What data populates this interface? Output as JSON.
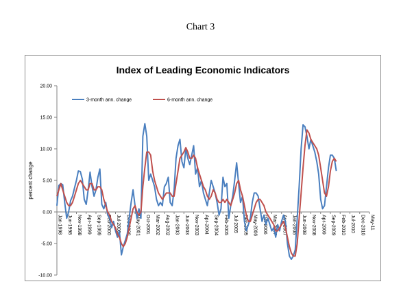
{
  "page": {
    "caption": "Chart 3"
  },
  "chart_data": {
    "type": "line",
    "title": "Index of Leading Economic Indicators",
    "xlabel": "",
    "ylabel": "percent change",
    "ylim": [
      -10,
      20
    ],
    "yticks": [
      "20.00",
      "15.00",
      "10.00",
      "5.00",
      "0.00",
      "-5.00",
      "-10.00"
    ],
    "ytick_values": [
      20,
      15,
      10,
      5,
      0,
      -5,
      -10
    ],
    "grid": false,
    "legend": "top-left",
    "x_start": "1998-01",
    "x_end": "2011-05",
    "xticks": [
      "Jan-1998",
      "Jun-1998",
      "Nov-1998",
      "Apr-1999",
      "Sep-1999",
      "Feb-2000",
      "Jul-2000",
      "Dec-2000",
      "May-2001",
      "Oct-2001",
      "Mar-2002",
      "Aug-2002",
      "Jan-2003",
      "Jun-2003",
      "Nov-2003",
      "Apr-2004",
      "Sep-2004",
      "Feb-2005",
      "Jul-2005",
      "Dec-2005",
      "May-2006",
      "Oct-2006",
      "Mar-2007",
      "Aug-2007",
      "Jan-2008",
      "Jun-2008",
      "Nov-2008",
      "Apr-2009",
      "Sep-2009",
      "Feb-2010",
      "Jul-2010",
      "Dec-2010",
      "May-11"
    ],
    "series": [
      {
        "name": "3-month ann. change",
        "color": "#4a7fbf",
        "points": [
          [
            "1998-01",
            1.0
          ],
          [
            "1998-02",
            4.2
          ],
          [
            "1998-03",
            4.5
          ],
          [
            "1998-04",
            4.3
          ],
          [
            "1998-05",
            1.5
          ],
          [
            "1998-06",
            -1.0
          ],
          [
            "1998-07",
            0.0
          ],
          [
            "1998-08",
            1.8
          ],
          [
            "1998-09",
            2.5
          ],
          [
            "1998-10",
            3.8
          ],
          [
            "1998-11",
            5.0
          ],
          [
            "1998-12",
            6.5
          ],
          [
            "1999-01",
            6.4
          ],
          [
            "1999-02",
            5.2
          ],
          [
            "1999-03",
            2.0
          ],
          [
            "1999-04",
            1.2
          ],
          [
            "1999-05",
            3.5
          ],
          [
            "1999-06",
            6.3
          ],
          [
            "1999-07",
            4.0
          ],
          [
            "1999-08",
            2.5
          ],
          [
            "1999-09",
            3.5
          ],
          [
            "1999-10",
            5.5
          ],
          [
            "1999-11",
            6.8
          ],
          [
            "1999-12",
            1.2
          ],
          [
            "2000-01",
            0.5
          ],
          [
            "2000-02",
            1.5
          ],
          [
            "2000-03",
            -0.5
          ],
          [
            "2000-04",
            -1.0
          ],
          [
            "2000-05",
            -2.5
          ],
          [
            "2000-06",
            -1.5
          ],
          [
            "2000-07",
            -3.0
          ],
          [
            "2000-08",
            -4.0
          ],
          [
            "2000-09",
            -3.0
          ],
          [
            "2000-10",
            -6.8
          ],
          [
            "2000-11",
            -5.5
          ],
          [
            "2000-12",
            -4.5
          ],
          [
            "2001-01",
            -3.5
          ],
          [
            "2001-02",
            -1.0
          ],
          [
            "2001-03",
            1.5
          ],
          [
            "2001-04",
            3.5
          ],
          [
            "2001-05",
            1.0
          ],
          [
            "2001-06",
            -1.0
          ],
          [
            "2001-07",
            0.5
          ],
          [
            "2001-08",
            -1.0
          ],
          [
            "2001-09",
            12.0
          ],
          [
            "2001-10",
            14.0
          ],
          [
            "2001-11",
            12.0
          ],
          [
            "2001-12",
            5.0
          ],
          [
            "2002-01",
            6.0
          ],
          [
            "2002-02",
            5.0
          ],
          [
            "2002-03",
            4.0
          ],
          [
            "2002-04",
            2.0
          ],
          [
            "2002-05",
            1.0
          ],
          [
            "2002-06",
            1.5
          ],
          [
            "2002-07",
            1.0
          ],
          [
            "2002-08",
            4.0
          ],
          [
            "2002-09",
            4.5
          ],
          [
            "2002-10",
            5.5
          ],
          [
            "2002-11",
            1.5
          ],
          [
            "2002-12",
            1.0
          ],
          [
            "2003-01",
            3.5
          ],
          [
            "2003-02",
            8.5
          ],
          [
            "2003-03",
            10.5
          ],
          [
            "2003-04",
            11.5
          ],
          [
            "2003-05",
            8.0
          ],
          [
            "2003-06",
            7.0
          ],
          [
            "2003-07",
            10.0
          ],
          [
            "2003-08",
            8.5
          ],
          [
            "2003-09",
            7.5
          ],
          [
            "2003-10",
            9.0
          ],
          [
            "2003-11",
            10.5
          ],
          [
            "2003-12",
            6.0
          ],
          [
            "2004-01",
            7.0
          ],
          [
            "2004-02",
            4.0
          ],
          [
            "2004-03",
            5.0
          ],
          [
            "2004-04",
            3.0
          ],
          [
            "2004-05",
            2.0
          ],
          [
            "2004-06",
            1.0
          ],
          [
            "2004-07",
            3.0
          ],
          [
            "2004-08",
            5.0
          ],
          [
            "2004-09",
            4.0
          ],
          [
            "2004-10",
            3.0
          ],
          [
            "2004-11",
            1.5
          ],
          [
            "2004-12",
            -0.5
          ],
          [
            "2005-01",
            0.5
          ],
          [
            "2005-02",
            5.5
          ],
          [
            "2005-03",
            4.0
          ],
          [
            "2005-04",
            4.5
          ],
          [
            "2005-05",
            -1.0
          ],
          [
            "2005-06",
            1.0
          ],
          [
            "2005-07",
            2.5
          ],
          [
            "2005-08",
            5.0
          ],
          [
            "2005-09",
            7.8
          ],
          [
            "2005-10",
            4.5
          ],
          [
            "2005-11",
            1.5
          ],
          [
            "2005-12",
            2.5
          ],
          [
            "2006-01",
            -1.5
          ],
          [
            "2006-02",
            -3.0
          ],
          [
            "2006-03",
            -2.0
          ],
          [
            "2006-04",
            -1.0
          ],
          [
            "2006-05",
            1.5
          ],
          [
            "2006-06",
            3.0
          ],
          [
            "2006-07",
            3.0
          ],
          [
            "2006-08",
            2.5
          ],
          [
            "2006-09",
            0.5
          ],
          [
            "2006-10",
            -1.5
          ],
          [
            "2006-11",
            -0.5
          ],
          [
            "2006-12",
            -2.0
          ],
          [
            "2007-01",
            -1.0
          ],
          [
            "2007-02",
            -2.0
          ],
          [
            "2007-03",
            -3.0
          ],
          [
            "2007-04",
            -2.5
          ],
          [
            "2007-05",
            -4.0
          ],
          [
            "2007-06",
            -2.0
          ],
          [
            "2007-07",
            -3.0
          ],
          [
            "2007-08",
            -1.5
          ],
          [
            "2007-09",
            -0.5
          ],
          [
            "2007-10",
            -1.5
          ],
          [
            "2007-11",
            -5.0
          ],
          [
            "2007-12",
            -7.0
          ],
          [
            "2008-01",
            -7.5
          ],
          [
            "2008-02",
            -7.0
          ],
          [
            "2008-03",
            -6.0
          ],
          [
            "2008-04",
            -1.0
          ],
          [
            "2008-05",
            4.0
          ],
          [
            "2008-06",
            10.0
          ],
          [
            "2008-07",
            13.8
          ],
          [
            "2008-08",
            13.5
          ],
          [
            "2008-09",
            12.0
          ],
          [
            "2008-10",
            10.0
          ],
          [
            "2008-11",
            11.5
          ],
          [
            "2008-12",
            10.5
          ],
          [
            "2009-01",
            9.5
          ],
          [
            "2009-02",
            8.0
          ],
          [
            "2009-03",
            6.0
          ],
          [
            "2009-04",
            2.0
          ],
          [
            "2009-05",
            0.5
          ],
          [
            "2009-06",
            1.0
          ],
          [
            "2009-07",
            4.0
          ],
          [
            "2009-08",
            7.0
          ],
          [
            "2009-09",
            9.0
          ],
          [
            "2009-10",
            9.0
          ],
          [
            "2009-11",
            8.5
          ],
          [
            "2009-12",
            6.5
          ]
        ]
      },
      {
        "name": "6-month ann. change",
        "color": "#c0504d",
        "points": [
          [
            "1998-01",
            2.5
          ],
          [
            "1998-02",
            3.5
          ],
          [
            "1998-03",
            4.5
          ],
          [
            "1998-04",
            3.5
          ],
          [
            "1998-05",
            2.5
          ],
          [
            "1998-06",
            1.5
          ],
          [
            "1998-07",
            1.0
          ],
          [
            "1998-08",
            1.0
          ],
          [
            "1998-09",
            1.5
          ],
          [
            "1998-10",
            2.5
          ],
          [
            "1998-11",
            3.5
          ],
          [
            "1998-12",
            4.5
          ],
          [
            "1999-01",
            5.0
          ],
          [
            "1999-02",
            4.5
          ],
          [
            "1999-03",
            4.0
          ],
          [
            "1999-04",
            3.5
          ],
          [
            "1999-05",
            3.5
          ],
          [
            "1999-06",
            4.5
          ],
          [
            "1999-07",
            4.5
          ],
          [
            "1999-08",
            3.5
          ],
          [
            "1999-09",
            3.5
          ],
          [
            "1999-10",
            4.0
          ],
          [
            "1999-11",
            4.0
          ],
          [
            "1999-12",
            3.5
          ],
          [
            "2000-01",
            2.0
          ],
          [
            "2000-02",
            1.0
          ],
          [
            "2000-03",
            0.0
          ],
          [
            "2000-04",
            -0.5
          ],
          [
            "2000-05",
            -1.5
          ],
          [
            "2000-06",
            -2.0
          ],
          [
            "2000-07",
            -2.5
          ],
          [
            "2000-08",
            -3.5
          ],
          [
            "2000-09",
            -4.0
          ],
          [
            "2000-10",
            -5.0
          ],
          [
            "2000-11",
            -5.5
          ],
          [
            "2000-12",
            -5.0
          ],
          [
            "2001-01",
            -4.0
          ],
          [
            "2001-02",
            -2.5
          ],
          [
            "2001-03",
            -1.0
          ],
          [
            "2001-04",
            0.5
          ],
          [
            "2001-05",
            1.0
          ],
          [
            "2001-06",
            0.0
          ],
          [
            "2001-07",
            -0.5
          ],
          [
            "2001-08",
            0.0
          ],
          [
            "2001-09",
            4.0
          ],
          [
            "2001-10",
            7.0
          ],
          [
            "2001-11",
            9.5
          ],
          [
            "2001-12",
            9.5
          ],
          [
            "2002-01",
            9.0
          ],
          [
            "2002-02",
            6.5
          ],
          [
            "2002-03",
            5.0
          ],
          [
            "2002-04",
            4.0
          ],
          [
            "2002-05",
            3.0
          ],
          [
            "2002-06",
            2.5
          ],
          [
            "2002-07",
            2.0
          ],
          [
            "2002-08",
            2.5
          ],
          [
            "2002-09",
            3.0
          ],
          [
            "2002-10",
            3.0
          ],
          [
            "2002-11",
            3.0
          ],
          [
            "2002-12",
            2.5
          ],
          [
            "2003-01",
            2.5
          ],
          [
            "2003-02",
            4.5
          ],
          [
            "2003-03",
            6.5
          ],
          [
            "2003-04",
            8.5
          ],
          [
            "2003-05",
            9.0
          ],
          [
            "2003-06",
            9.5
          ],
          [
            "2003-07",
            10.2
          ],
          [
            "2003-08",
            9.5
          ],
          [
            "2003-09",
            8.5
          ],
          [
            "2003-10",
            8.5
          ],
          [
            "2003-11",
            9.0
          ],
          [
            "2003-12",
            8.5
          ],
          [
            "2004-01",
            7.0
          ],
          [
            "2004-02",
            6.0
          ],
          [
            "2004-03",
            5.0
          ],
          [
            "2004-04",
            4.0
          ],
          [
            "2004-05",
            3.5
          ],
          [
            "2004-06",
            2.5
          ],
          [
            "2004-07",
            2.0
          ],
          [
            "2004-08",
            2.5
          ],
          [
            "2004-09",
            3.5
          ],
          [
            "2004-10",
            3.0
          ],
          [
            "2004-11",
            2.0
          ],
          [
            "2004-12",
            1.5
          ],
          [
            "2005-01",
            1.5
          ],
          [
            "2005-02",
            2.0
          ],
          [
            "2005-03",
            1.5
          ],
          [
            "2005-04",
            2.0
          ],
          [
            "2005-05",
            1.5
          ],
          [
            "2005-06",
            1.0
          ],
          [
            "2005-07",
            2.0
          ],
          [
            "2005-08",
            3.0
          ],
          [
            "2005-09",
            4.5
          ],
          [
            "2005-10",
            5.0
          ],
          [
            "2005-11",
            3.5
          ],
          [
            "2005-12",
            2.5
          ],
          [
            "2006-01",
            1.0
          ],
          [
            "2006-02",
            -0.5
          ],
          [
            "2006-03",
            -1.5
          ],
          [
            "2006-04",
            -1.5
          ],
          [
            "2006-05",
            -0.5
          ],
          [
            "2006-06",
            0.5
          ],
          [
            "2006-07",
            1.5
          ],
          [
            "2006-08",
            2.0
          ],
          [
            "2006-09",
            2.0
          ],
          [
            "2006-10",
            1.5
          ],
          [
            "2006-11",
            1.0
          ],
          [
            "2006-12",
            0.0
          ],
          [
            "2007-01",
            -0.5
          ],
          [
            "2007-02",
            -1.0
          ],
          [
            "2007-03",
            -1.5
          ],
          [
            "2007-04",
            -2.0
          ],
          [
            "2007-05",
            -3.0
          ],
          [
            "2007-06",
            -3.0
          ],
          [
            "2007-07",
            -2.5
          ],
          [
            "2007-08",
            -2.0
          ],
          [
            "2007-09",
            -1.5
          ],
          [
            "2007-10",
            -2.5
          ],
          [
            "2007-11",
            -4.0
          ],
          [
            "2007-12",
            -5.5
          ],
          [
            "2008-01",
            -6.5
          ],
          [
            "2008-02",
            -7.0
          ],
          [
            "2008-03",
            -7.0
          ],
          [
            "2008-04",
            -5.0
          ],
          [
            "2008-05",
            -1.0
          ],
          [
            "2008-06",
            3.0
          ],
          [
            "2008-07",
            7.0
          ],
          [
            "2008-08",
            10.5
          ],
          [
            "2008-09",
            13.0
          ],
          [
            "2008-10",
            12.5
          ],
          [
            "2008-11",
            11.5
          ],
          [
            "2008-12",
            11.0
          ],
          [
            "2009-01",
            10.5
          ],
          [
            "2009-02",
            10.0
          ],
          [
            "2009-03",
            9.0
          ],
          [
            "2009-04",
            7.0
          ],
          [
            "2009-05",
            5.0
          ],
          [
            "2009-06",
            3.0
          ],
          [
            "2009-07",
            2.5
          ],
          [
            "2009-08",
            4.0
          ],
          [
            "2009-09",
            6.5
          ],
          [
            "2009-10",
            8.0
          ],
          [
            "2009-11",
            8.5
          ],
          [
            "2009-12",
            8.0
          ]
        ]
      }
    ]
  }
}
